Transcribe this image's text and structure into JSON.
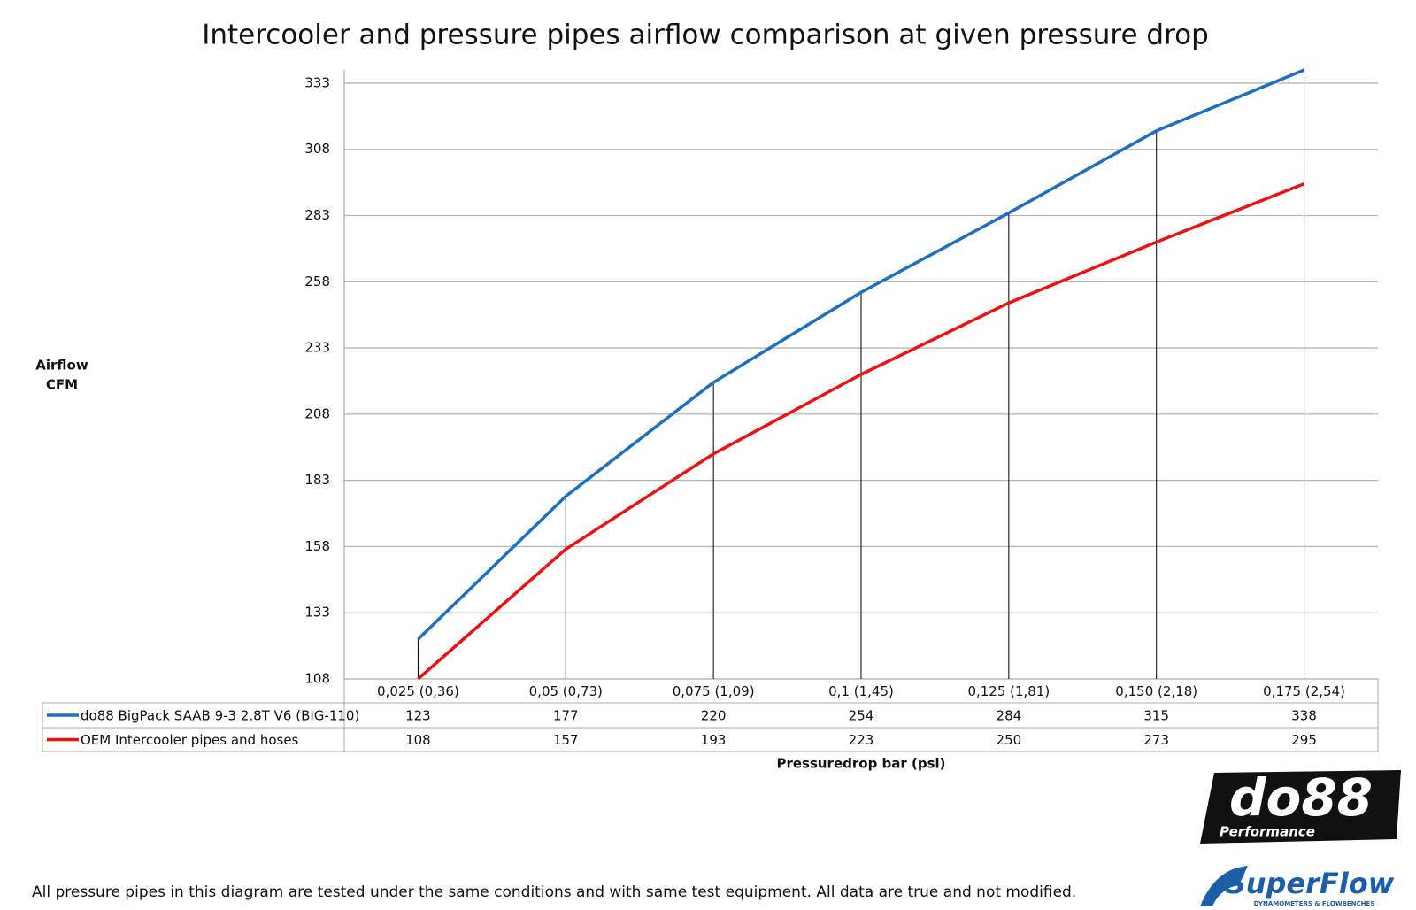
{
  "chart_data": {
    "type": "line",
    "title": "Intercooler and pressure pipes airflow comparison at given pressure drop",
    "y_label": [
      "Airflow",
      "CFM"
    ],
    "x_label": "Pressuredrop bar (psi)",
    "categories": [
      "0,025 (0,36)",
      "0,05 (0,73)",
      "0,075 (1,09)",
      "0,1 (1,45)",
      "0,125 (1,81)",
      "0,150 (2,18)",
      "0,175 (2,54)"
    ],
    "series": [
      {
        "name": "do88 BigPack SAAB 9-3 2.8T V6 (BIG-110)",
        "color": "#1f6fbf",
        "values": [
          123,
          177,
          220,
          254,
          284,
          315,
          338
        ]
      },
      {
        "name": "OEM Intercooler pipes and hoses",
        "color": "#ee1111",
        "values": [
          108,
          157,
          193,
          223,
          250,
          273,
          295
        ]
      }
    ],
    "ylim": [
      108,
      338
    ],
    "yticks": [
      108,
      133,
      158,
      183,
      208,
      233,
      258,
      283,
      308,
      333
    ],
    "grid": true
  },
  "footnote": "All pressure pipes in this diagram are tested under the same conditions and with same test equipment. All data are true and not modified.",
  "logos": {
    "do88": "do88",
    "do88_sub": "Performance",
    "superflow": "SuperFlow",
    "superflow_sub": "DYNAMOMETERS & FLOWBENCHES"
  }
}
